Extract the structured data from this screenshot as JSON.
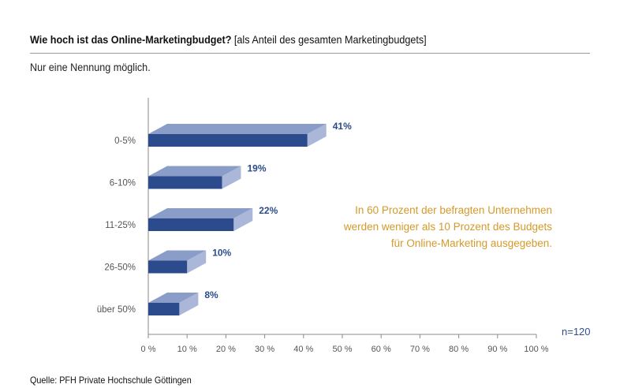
{
  "header": {
    "title_bold": "Wie hoch ist das Online-Marketingbudget?",
    "title_rest": "[als Anteil des gesamten Marketingbudgets]",
    "subtitle": "Nur eine Nennung möglich."
  },
  "source": "Quelle: PFH Private Hochschule Göttingen",
  "annotation": {
    "lines": [
      "In 60 Prozent der befragten Unternehmen",
      "werden weniger als 10 Prozent des Budgets",
      "für Online-Marketing ausgegeben."
    ]
  },
  "sample_size": "n=120",
  "colors": {
    "bar_front": "#2b4b8c",
    "bar_top": "#8a9cc8",
    "bar_side": "#aab7d8",
    "value_label": "#2b4b8c",
    "annotation": "#d49a2a",
    "axis": "#8a8a8a",
    "tick_text": "#555555"
  },
  "chart_data": {
    "type": "bar",
    "orientation": "horizontal",
    "style": "3d",
    "title": "Wie hoch ist das Online-Marketingbudget? [als Anteil des gesamten Marketingbudgets]",
    "categories": [
      "0-5%",
      "6-10%",
      "11-25%",
      "26-50%",
      "über 50%"
    ],
    "values": [
      41,
      19,
      22,
      10,
      8
    ],
    "value_labels": [
      "41%",
      "19%",
      "22%",
      "10%",
      "8%"
    ],
    "xlim": [
      0,
      100
    ],
    "x_ticks": [
      0,
      10,
      20,
      30,
      40,
      50,
      60,
      70,
      80,
      90,
      100
    ],
    "x_tick_labels": [
      "0 %",
      "10 %",
      "20 %",
      "30 %",
      "40 %",
      "50 %",
      "60 %",
      "70 %",
      "80 %",
      "90 %",
      "100 %"
    ],
    "xlabel": "",
    "ylabel": "",
    "grid": false
  }
}
